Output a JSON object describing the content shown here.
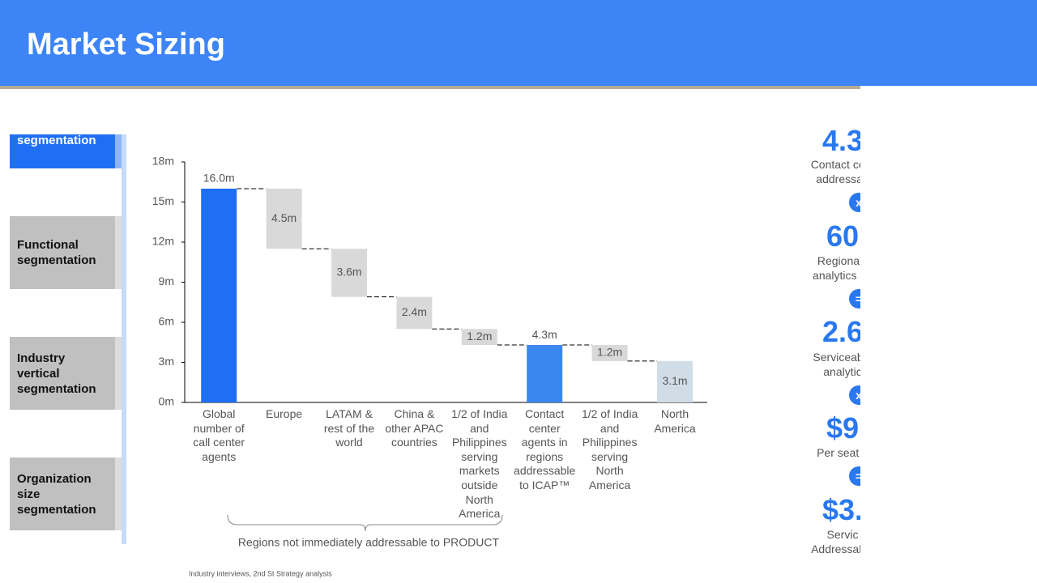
{
  "header": {
    "title": "Market Sizing"
  },
  "segments": [
    "segmentation",
    "Functional segmentation",
    "Industry vertical segmentation",
    "Organization size segmentation"
  ],
  "chart_data": {
    "type": "waterfall",
    "categories": [
      "Global number of call center agents",
      "Europe",
      "LATAM & rest of the world",
      "China & other APAC countries",
      "1/2 of India and Philippines serving markets outside North America",
      "Contact center agents in regions addressable to ICAP™",
      "1/2 of India and Philippines serving North America",
      "North America"
    ],
    "values": [
      16.0,
      4.5,
      3.6,
      2.4,
      1.2,
      4.3,
      1.2,
      3.1
    ],
    "value_labels": [
      "16.0m",
      "4.5m",
      "3.6m",
      "2.4m",
      "1.2m",
      "4.3m",
      "1.2m",
      "3.1m"
    ],
    "measures": [
      "total",
      "decrease",
      "decrease",
      "decrease",
      "decrease",
      "total",
      "decrease",
      "total"
    ],
    "colors": [
      "#1f6ff5",
      "#d9d9d9",
      "#d9d9d9",
      "#d9d9d9",
      "#d9d9d9",
      "#3b87f0",
      "#d9d9d9",
      "#d0dce6"
    ],
    "ylim": [
      0,
      18
    ],
    "yticks": [
      {
        "value": 0,
        "label": "0m"
      },
      {
        "value": 3,
        "label": "3m"
      },
      {
        "value": 6,
        "label": "6m"
      },
      {
        "value": 9,
        "label": "9m"
      },
      {
        "value": 12,
        "label": "12m"
      },
      {
        "value": 15,
        "label": "15m"
      },
      {
        "value": 18,
        "label": "18m"
      }
    ],
    "annotation": "Regions not immediately addressable to PRODUCT"
  },
  "source": "Industry interviews, 2nd St Strategy analysis",
  "side_panel": [
    {
      "figure": "4.3",
      "caption": [
        "Contact cent",
        "addressab"
      ],
      "operator": "x"
    },
    {
      "figure": "60",
      "caption": [
        "Regional i",
        "analytics ad"
      ],
      "operator": "="
    },
    {
      "figure": "2.6",
      "caption": [
        "Serviceable",
        "analytic"
      ],
      "operator": "x"
    },
    {
      "figure": "$9",
      "caption": [
        "Per seat p"
      ],
      "operator": "="
    },
    {
      "figure": "$3.",
      "caption": [
        "Servic",
        "Addressable"
      ]
    }
  ]
}
